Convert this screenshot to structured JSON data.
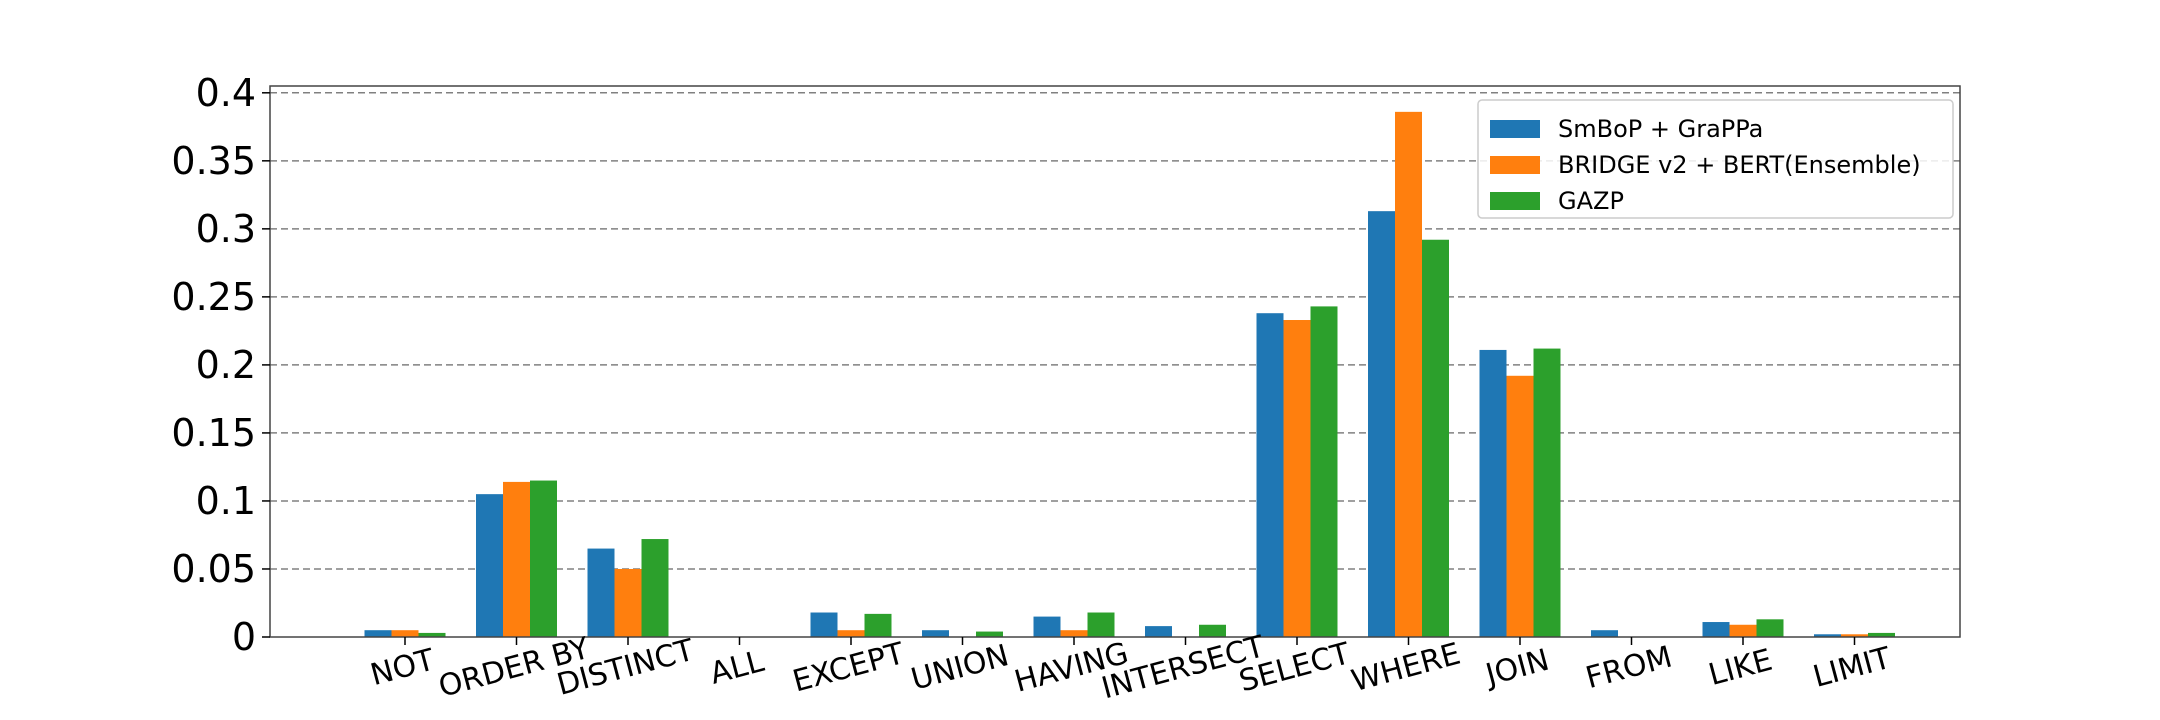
{
  "chart_data": {
    "type": "bar",
    "title": "",
    "xlabel": "",
    "ylabel": "",
    "categories": [
      "NOT",
      "ORDER BY",
      "DISTINCT",
      "ALL",
      "EXCEPT",
      "UNION",
      "HAVING",
      "INTERSECT",
      "SELECT",
      "WHERE",
      "JOIN",
      "FROM",
      "LIKE",
      "LIMIT"
    ],
    "series": [
      {
        "name": "SmBoP + GraPPa",
        "color": "#1f77b4",
        "values": [
          0.005,
          0.105,
          0.065,
          0.0,
          0.018,
          0.005,
          0.015,
          0.008,
          0.238,
          0.313,
          0.211,
          0.005,
          0.011,
          0.002
        ]
      },
      {
        "name": "BRIDGE v2 + BERT(Ensemble)",
        "color": "#ff7f0e",
        "values": [
          0.005,
          0.114,
          0.05,
          0.0,
          0.005,
          0.0,
          0.005,
          0.0,
          0.233,
          0.386,
          0.192,
          0.0,
          0.009,
          0.002
        ]
      },
      {
        "name": "GAZP",
        "color": "#2ca02c",
        "values": [
          0.003,
          0.115,
          0.072,
          0.0,
          0.017,
          0.004,
          0.018,
          0.009,
          0.243,
          0.292,
          0.212,
          0.0,
          0.013,
          0.003
        ]
      }
    ],
    "ylim": [
      0,
      0.405
    ],
    "yticks": [
      "0",
      "0.05",
      "0.1",
      "0.15",
      "0.2",
      "0.25",
      "0.3",
      "0.35",
      "0.4"
    ],
    "grid": true,
    "legend_position": "top-right"
  }
}
